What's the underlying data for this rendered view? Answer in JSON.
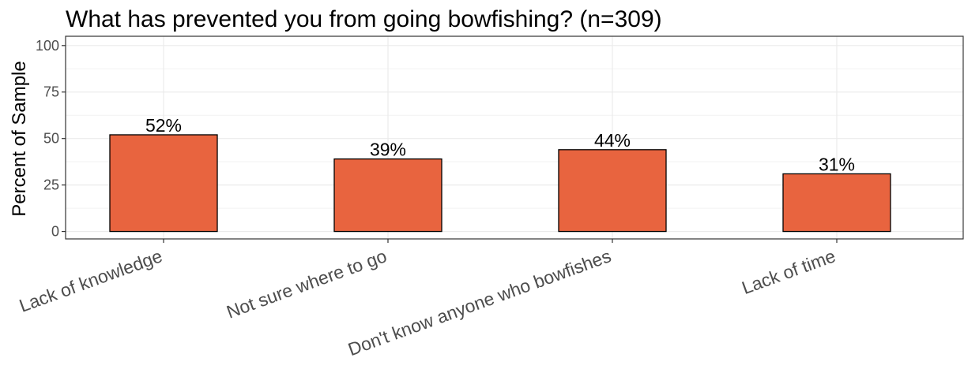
{
  "chart_data": {
    "type": "bar",
    "title": "What has prevented you from going bowfishing? (n=309)",
    "xlabel": "",
    "ylabel": "Percent of Sample",
    "categories": [
      "Lack of knowledge",
      "Not sure where to go",
      "Don't know anyone who bowfishes",
      "Lack of time"
    ],
    "values": [
      52,
      39,
      44,
      31
    ],
    "data_labels": [
      "52%",
      "39%",
      "44%",
      "31%"
    ],
    "y_ticks": [
      0,
      25,
      50,
      75,
      100
    ],
    "y_tick_labels": [
      "0",
      "25",
      "50",
      "75",
      "100"
    ],
    "ylim": [
      -4,
      105
    ],
    "grid": true,
    "legend": "none",
    "bar_color": "#E8643F",
    "bar_outline_color": "#000000"
  }
}
